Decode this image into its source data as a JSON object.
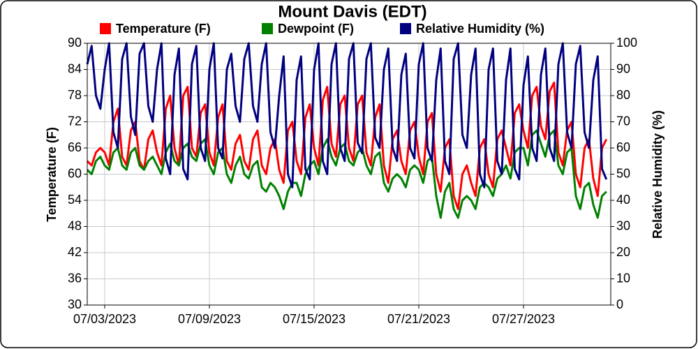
{
  "chart_data": {
    "type": "line",
    "title": "Mount Davis (EDT)",
    "y_label": "Temperature (F)",
    "y2_label": "Relative Humidity (%)",
    "xlim": [
      "07/02/2023 00:00",
      "08/01/2023 00:00"
    ],
    "xticks": [
      "07/03/2023",
      "07/09/2023",
      "07/15/2023",
      "07/21/2023",
      "07/27/2023"
    ],
    "ylim": [
      30,
      90
    ],
    "yticks": [
      30,
      36,
      42,
      48,
      54,
      60,
      66,
      72,
      78,
      84,
      90
    ],
    "y2lim": [
      0,
      100
    ],
    "y2ticks": [
      0,
      10,
      20,
      30,
      40,
      50,
      60,
      70,
      80,
      90,
      100
    ],
    "grid": true,
    "legend": "top",
    "x": [
      "07/02/2023 00:00",
      "07/02/2023 06:00",
      "07/02/2023 12:00",
      "07/02/2023 18:00",
      "07/03/2023 00:00",
      "07/03/2023 06:00",
      "07/03/2023 12:00",
      "07/03/2023 18:00",
      "07/04/2023 00:00",
      "07/04/2023 06:00",
      "07/04/2023 12:00",
      "07/04/2023 18:00",
      "07/05/2023 00:00",
      "07/05/2023 06:00",
      "07/05/2023 12:00",
      "07/05/2023 18:00",
      "07/06/2023 00:00",
      "07/06/2023 06:00",
      "07/06/2023 12:00",
      "07/06/2023 18:00",
      "07/07/2023 00:00",
      "07/07/2023 06:00",
      "07/07/2023 12:00",
      "07/07/2023 18:00",
      "07/08/2023 00:00",
      "07/08/2023 06:00",
      "07/08/2023 12:00",
      "07/08/2023 18:00",
      "07/09/2023 00:00",
      "07/09/2023 06:00",
      "07/09/2023 12:00",
      "07/09/2023 18:00",
      "07/10/2023 00:00",
      "07/10/2023 06:00",
      "07/10/2023 12:00",
      "07/10/2023 18:00",
      "07/11/2023 00:00",
      "07/11/2023 06:00",
      "07/11/2023 12:00",
      "07/11/2023 18:00",
      "07/12/2023 00:00",
      "07/12/2023 06:00",
      "07/12/2023 12:00",
      "07/12/2023 18:00",
      "07/13/2023 00:00",
      "07/13/2023 06:00",
      "07/13/2023 12:00",
      "07/13/2023 18:00",
      "07/14/2023 00:00",
      "07/14/2023 06:00",
      "07/14/2023 12:00",
      "07/14/2023 18:00",
      "07/15/2023 00:00",
      "07/15/2023 06:00",
      "07/15/2023 12:00",
      "07/15/2023 18:00",
      "07/16/2023 00:00",
      "07/16/2023 06:00",
      "07/16/2023 12:00",
      "07/16/2023 18:00",
      "07/17/2023 00:00",
      "07/17/2023 06:00",
      "07/17/2023 12:00",
      "07/17/2023 18:00",
      "07/18/2023 00:00",
      "07/18/2023 06:00",
      "07/18/2023 12:00",
      "07/18/2023 18:00",
      "07/19/2023 00:00",
      "07/19/2023 06:00",
      "07/19/2023 12:00",
      "07/19/2023 18:00",
      "07/20/2023 00:00",
      "07/20/2023 06:00",
      "07/20/2023 12:00",
      "07/20/2023 18:00",
      "07/21/2023 00:00",
      "07/21/2023 06:00",
      "07/21/2023 12:00",
      "07/21/2023 18:00",
      "07/22/2023 00:00",
      "07/22/2023 06:00",
      "07/22/2023 12:00",
      "07/22/2023 18:00",
      "07/23/2023 00:00",
      "07/23/2023 06:00",
      "07/23/2023 12:00",
      "07/23/2023 18:00",
      "07/24/2023 00:00",
      "07/24/2023 06:00",
      "07/24/2023 12:00",
      "07/24/2023 18:00",
      "07/25/2023 00:00",
      "07/25/2023 06:00",
      "07/25/2023 12:00",
      "07/25/2023 18:00",
      "07/26/2023 00:00",
      "07/26/2023 06:00",
      "07/26/2023 12:00",
      "07/26/2023 18:00",
      "07/27/2023 00:00",
      "07/27/2023 06:00",
      "07/27/2023 12:00",
      "07/27/2023 18:00",
      "07/28/2023 00:00",
      "07/28/2023 06:00",
      "07/28/2023 12:00",
      "07/28/2023 18:00",
      "07/29/2023 00:00",
      "07/29/2023 06:00",
      "07/29/2023 12:00",
      "07/29/2023 18:00",
      "07/30/2023 00:00",
      "07/30/2023 06:00",
      "07/30/2023 12:00",
      "07/30/2023 18:00",
      "07/31/2023 00:00",
      "07/31/2023 06:00",
      "07/31/2023 12:00",
      "07/31/2023 18:00"
    ],
    "series": [
      {
        "name": "Temperature (F)",
        "color": "#ff0000",
        "values": [
          63,
          62,
          65,
          66,
          65,
          62,
          72,
          75,
          64,
          62,
          70,
          72,
          63,
          61,
          68,
          70,
          65,
          62,
          75,
          78,
          66,
          62,
          78,
          80,
          66,
          64,
          74,
          76,
          65,
          62,
          73,
          76,
          63,
          61,
          67,
          69,
          63,
          61,
          68,
          70,
          62,
          60,
          66,
          68,
          61,
          58,
          70,
          72,
          63,
          60,
          73,
          76,
          66,
          62,
          77,
          80,
          67,
          64,
          76,
          78,
          66,
          63,
          76,
          78,
          65,
          62,
          73,
          76,
          62,
          58,
          68,
          70,
          63,
          60,
          70,
          72,
          64,
          60,
          72,
          74,
          60,
          56,
          66,
          68,
          55,
          52,
          60,
          62,
          58,
          55,
          66,
          68,
          60,
          57,
          68,
          70,
          66,
          62,
          74,
          76,
          70,
          66,
          78,
          80,
          71,
          68,
          79,
          81,
          65,
          62,
          70,
          72,
          60,
          57,
          66,
          68,
          59,
          55,
          66,
          68
        ]
      },
      {
        "name": "Dewpoint (F)",
        "color": "#008000",
        "values": [
          61,
          60,
          63,
          64,
          62,
          61,
          65,
          66,
          62,
          61,
          65,
          66,
          62,
          61,
          63,
          64,
          62,
          60,
          65,
          67,
          63,
          62,
          66,
          67,
          64,
          63,
          67,
          68,
          62,
          60,
          65,
          66,
          60,
          58,
          62,
          64,
          60,
          59,
          62,
          63,
          57,
          56,
          58,
          57,
          55,
          52,
          56,
          58,
          58,
          55,
          60,
          62,
          63,
          60,
          66,
          68,
          64,
          62,
          66,
          67,
          63,
          62,
          65,
          66,
          62,
          60,
          64,
          65,
          58,
          56,
          59,
          60,
          59,
          57,
          61,
          62,
          61,
          58,
          63,
          64,
          55,
          50,
          56,
          58,
          52,
          50,
          54,
          55,
          54,
          52,
          57,
          58,
          57,
          55,
          59,
          60,
          62,
          59,
          65,
          66,
          66,
          62,
          69,
          70,
          67,
          64,
          69,
          70,
          62,
          60,
          65,
          66,
          55,
          52,
          57,
          58,
          53,
          50,
          55,
          56
        ]
      },
      {
        "name": "Relative Humidity (%)",
        "color": "#000080",
        "axis": "y2",
        "values": [
          92,
          99,
          80,
          75,
          90,
          100,
          66,
          60,
          94,
          100,
          72,
          65,
          96,
          100,
          76,
          70,
          90,
          100,
          56,
          50,
          88,
          98,
          52,
          48,
          92,
          99,
          60,
          55,
          90,
          100,
          60,
          56,
          90,
          96,
          76,
          70,
          94,
          100,
          76,
          70,
          92,
          100,
          66,
          60,
          80,
          95,
          50,
          45,
          86,
          95,
          52,
          48,
          90,
          100,
          55,
          50,
          92,
          100,
          60,
          55,
          94,
          100,
          62,
          58,
          94,
          100,
          64,
          60,
          90,
          98,
          60,
          55,
          88,
          96,
          60,
          56,
          92,
          100,
          60,
          55,
          86,
          98,
          55,
          50,
          94,
          100,
          65,
          60,
          88,
          98,
          50,
          45,
          90,
          98,
          55,
          50,
          86,
          98,
          52,
          48,
          84,
          95,
          60,
          55,
          88,
          98,
          60,
          55,
          92,
          100,
          66,
          60,
          92,
          99,
          66,
          60,
          86,
          95,
          52,
          48
        ]
      }
    ]
  }
}
